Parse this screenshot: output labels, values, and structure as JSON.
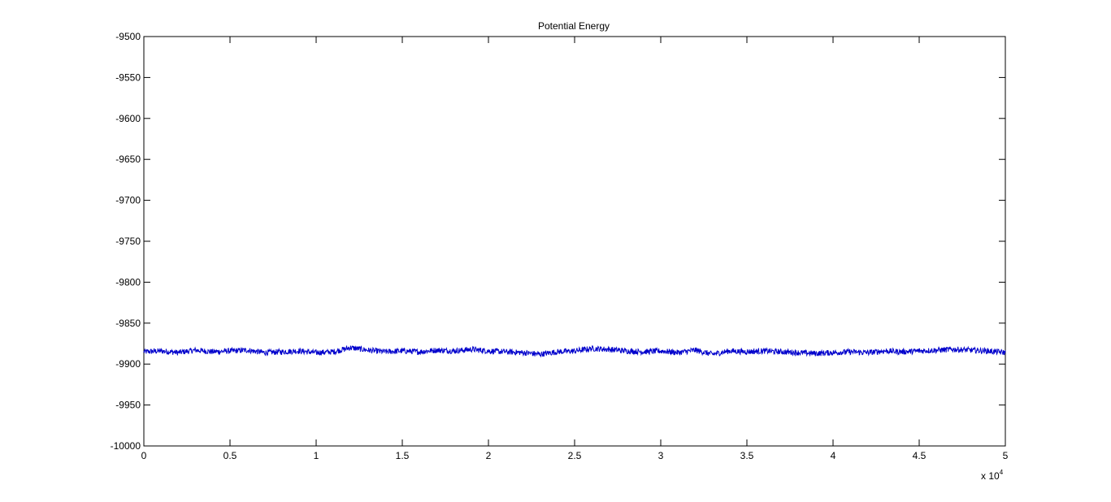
{
  "chart_data": {
    "type": "line",
    "title": "Potential Energy",
    "xlabel": "",
    "ylabel": "",
    "x_multiplier_label": "x 10",
    "x_multiplier_exponent": "4",
    "xlim": [
      0,
      5
    ],
    "ylim": [
      -10000,
      -9500
    ],
    "x_ticks": [
      0,
      0.5,
      1,
      1.5,
      2,
      2.5,
      3,
      3.5,
      4,
      4.5,
      5
    ],
    "x_tick_labels": [
      "0",
      "0.5",
      "1",
      "1.5",
      "2",
      "2.5",
      "3",
      "3.5",
      "4",
      "4.5",
      "5"
    ],
    "y_ticks": [
      -10000,
      -9950,
      -9900,
      -9850,
      -9800,
      -9750,
      -9700,
      -9650,
      -9600,
      -9550,
      -9500
    ],
    "y_tick_labels": [
      "-10000",
      "-9950",
      "-9900",
      "-9850",
      "-9800",
      "-9750",
      "-9700",
      "-9650",
      "-9600",
      "-9550",
      "-9500"
    ],
    "grid": false,
    "line_color": "#0000cc",
    "series": [
      {
        "x": [
          0,
          0.1,
          0.2,
          0.3,
          0.4,
          0.5,
          0.6,
          0.7,
          0.8,
          0.9,
          1.0,
          1.1,
          1.2,
          1.3,
          1.4,
          1.5,
          1.6,
          1.7,
          1.8,
          1.9,
          2.0,
          2.1,
          2.2,
          2.3,
          2.4,
          2.5,
          2.6,
          2.7,
          2.8,
          2.9,
          3.0,
          3.1,
          3.2,
          3.3,
          3.4,
          3.5,
          3.6,
          3.7,
          3.8,
          3.9,
          4.0,
          4.1,
          4.2,
          4.3,
          4.4,
          4.5,
          4.6,
          4.7,
          4.8,
          4.9,
          5.0
        ],
        "values": [
          -9885,
          -9884,
          -9886,
          -9883,
          -9885,
          -9884,
          -9883,
          -9886,
          -9885,
          -9884,
          -9886,
          -9885,
          -9880,
          -9883,
          -9885,
          -9884,
          -9885,
          -9883,
          -9884,
          -9882,
          -9884,
          -9885,
          -9886,
          -9888,
          -9885,
          -9884,
          -9881,
          -9882,
          -9884,
          -9885,
          -9884,
          -9886,
          -9883,
          -9888,
          -9884,
          -9885,
          -9884,
          -9885,
          -9886,
          -9887,
          -9886,
          -9885,
          -9886,
          -9884,
          -9885,
          -9884,
          -9883,
          -9882,
          -9883,
          -9884,
          -9886
        ]
      }
    ]
  }
}
